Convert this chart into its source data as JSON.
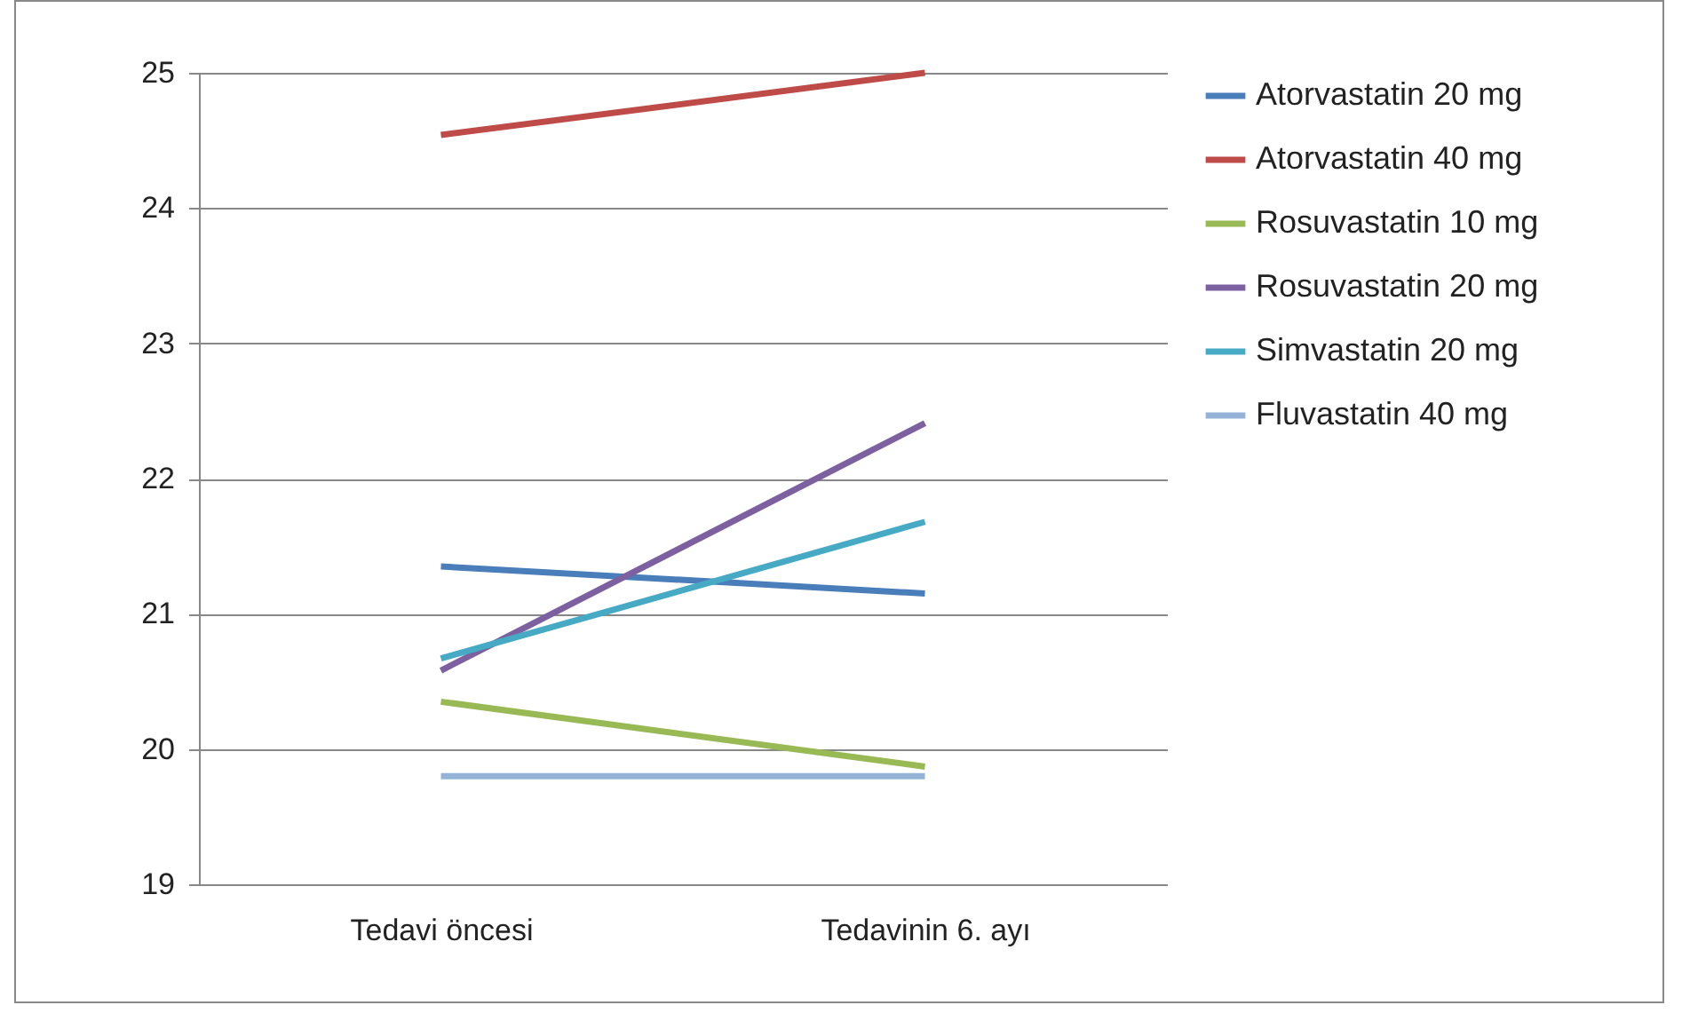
{
  "chart_data": {
    "type": "line",
    "categories": [
      "Tedavi öncesi",
      "Tedavinin 6. ayı"
    ],
    "series": [
      {
        "name": "Atorvastatin 20 mg",
        "color": "#4a7ebb",
        "values": [
          21.35,
          21.15
        ]
      },
      {
        "name": "Atorvastatin 40 mg",
        "color": "#be4b48",
        "values": [
          24.54,
          25
        ]
      },
      {
        "name": "Rosuvastatin 10 mg",
        "color": "#98b954",
        "values": [
          20.35,
          19.87
        ]
      },
      {
        "name": "Rosuvastatin 20 mg",
        "color": "#7d60a0",
        "values": [
          20.58,
          22.41
        ]
      },
      {
        "name": "Simvastatin 20 mg",
        "color": "#46aac5",
        "values": [
          20.67,
          21.68
        ]
      },
      {
        "name": "Fluvastatin 40 mg",
        "color": "#95b3d7",
        "values": [
          19.8,
          19.8
        ]
      }
    ],
    "ylim": [
      19,
      25
    ],
    "yticks": [
      19,
      20,
      21,
      22,
      23,
      24,
      25
    ],
    "grid": "y",
    "legend": "right",
    "marker": "none"
  }
}
